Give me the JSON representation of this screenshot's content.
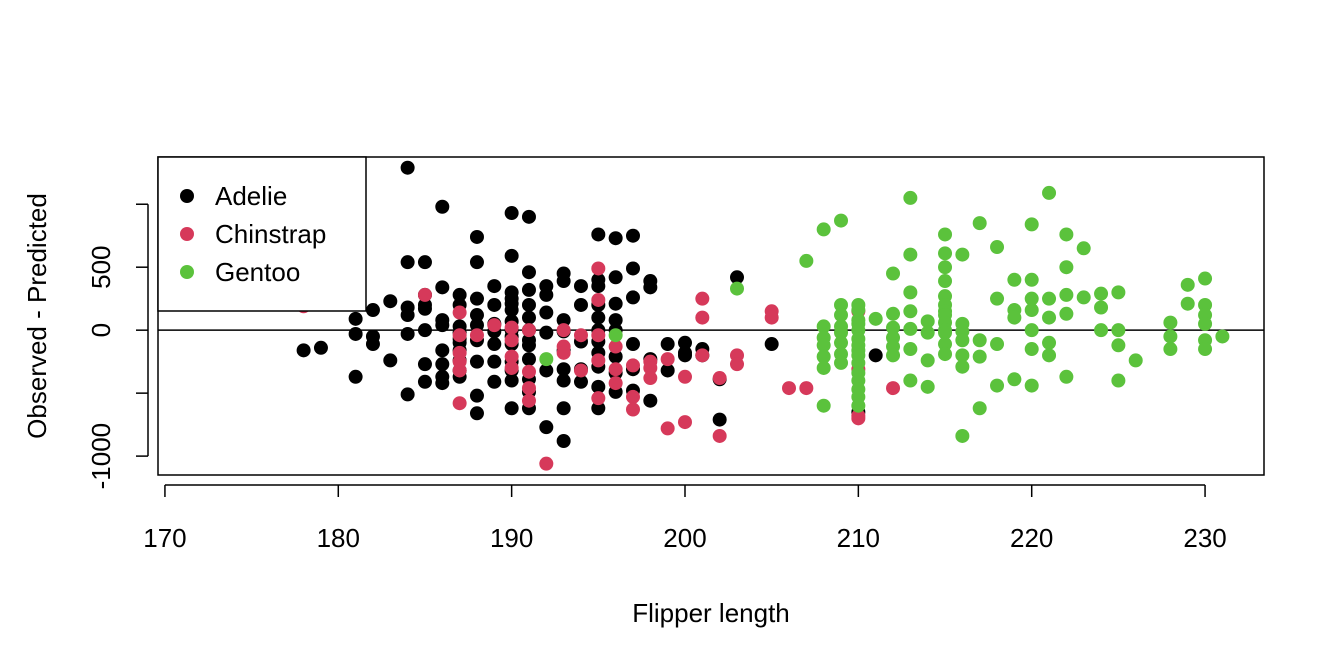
{
  "chart_data": {
    "type": "scatter",
    "title": "",
    "xlabel": "Flipper length",
    "ylabel": "Observed - Predicted",
    "xlim": [
      169.6,
      233.4
    ],
    "ylim": [
      -1150,
      1375
    ],
    "xticks": [
      170,
      180,
      190,
      200,
      210,
      220,
      230
    ],
    "yticks": [
      -1000,
      -500,
      0,
      500,
      1000
    ],
    "ytick_labels": [
      "-1000",
      "",
      "0",
      "500",
      ""
    ],
    "reference_line_y": 0,
    "grid": false,
    "legend_position": "top-left",
    "series": [
      {
        "name": "Adelie",
        "color": "#000000",
        "points": [
          [
            178,
            -160
          ],
          [
            179,
            -140
          ],
          [
            181,
            90
          ],
          [
            181,
            -30
          ],
          [
            181,
            -370
          ],
          [
            182,
            160
          ],
          [
            182,
            -50
          ],
          [
            182,
            -110
          ],
          [
            183,
            230
          ],
          [
            183,
            -240
          ],
          [
            184,
            1290
          ],
          [
            184,
            540
          ],
          [
            184,
            180
          ],
          [
            184,
            120
          ],
          [
            184,
            -30
          ],
          [
            184,
            -510
          ],
          [
            185,
            540
          ],
          [
            185,
            280
          ],
          [
            185,
            200
          ],
          [
            185,
            170
          ],
          [
            185,
            0
          ],
          [
            185,
            -270
          ],
          [
            185,
            -410
          ],
          [
            186,
            980
          ],
          [
            186,
            340
          ],
          [
            186,
            80
          ],
          [
            186,
            40
          ],
          [
            186,
            -160
          ],
          [
            186,
            -270
          ],
          [
            186,
            -370
          ],
          [
            186,
            -420
          ],
          [
            187,
            280
          ],
          [
            187,
            200
          ],
          [
            187,
            30
          ],
          [
            187,
            -20
          ],
          [
            187,
            -70
          ],
          [
            187,
            -100
          ],
          [
            187,
            -160
          ],
          [
            187,
            -240
          ],
          [
            187,
            -320
          ],
          [
            187,
            -370
          ],
          [
            188,
            740
          ],
          [
            188,
            540
          ],
          [
            188,
            250
          ],
          [
            188,
            120
          ],
          [
            188,
            40
          ],
          [
            188,
            -80
          ],
          [
            188,
            -250
          ],
          [
            188,
            -520
          ],
          [
            188,
            -660
          ],
          [
            189,
            350
          ],
          [
            189,
            200
          ],
          [
            189,
            50
          ],
          [
            189,
            -10
          ],
          [
            189,
            -110
          ],
          [
            189,
            -250
          ],
          [
            189,
            -410
          ],
          [
            190,
            930
          ],
          [
            190,
            590
          ],
          [
            190,
            300
          ],
          [
            190,
            250
          ],
          [
            190,
            210
          ],
          [
            190,
            160
          ],
          [
            190,
            70
          ],
          [
            190,
            0
          ],
          [
            190,
            -50
          ],
          [
            190,
            -110
          ],
          [
            190,
            -250
          ],
          [
            190,
            -320
          ],
          [
            190,
            -400
          ],
          [
            190,
            -620
          ],
          [
            191,
            900
          ],
          [
            191,
            460
          ],
          [
            191,
            320
          ],
          [
            191,
            200
          ],
          [
            191,
            100
          ],
          [
            191,
            0
          ],
          [
            191,
            -80
          ],
          [
            191,
            -120
          ],
          [
            191,
            -230
          ],
          [
            191,
            -390
          ],
          [
            191,
            -490
          ],
          [
            191,
            -620
          ],
          [
            192,
            350
          ],
          [
            192,
            280
          ],
          [
            192,
            140
          ],
          [
            192,
            -20
          ],
          [
            192,
            -320
          ],
          [
            192,
            -770
          ],
          [
            193,
            450
          ],
          [
            193,
            390
          ],
          [
            193,
            80
          ],
          [
            193,
            -10
          ],
          [
            193,
            -160
          ],
          [
            193,
            -310
          ],
          [
            193,
            -400
          ],
          [
            193,
            -620
          ],
          [
            193,
            -880
          ],
          [
            194,
            350
          ],
          [
            194,
            200
          ],
          [
            194,
            -90
          ],
          [
            194,
            -310
          ],
          [
            194,
            -410
          ],
          [
            195,
            760
          ],
          [
            195,
            400
          ],
          [
            195,
            350
          ],
          [
            195,
            200
          ],
          [
            195,
            100
          ],
          [
            195,
            0
          ],
          [
            195,
            -90
          ],
          [
            195,
            -180
          ],
          [
            195,
            -290
          ],
          [
            195,
            -450
          ],
          [
            195,
            -620
          ],
          [
            196,
            730
          ],
          [
            196,
            420
          ],
          [
            196,
            210
          ],
          [
            196,
            80
          ],
          [
            196,
            0
          ],
          [
            196,
            -210
          ],
          [
            196,
            -340
          ],
          [
            196,
            -490
          ],
          [
            197,
            750
          ],
          [
            197,
            490
          ],
          [
            197,
            260
          ],
          [
            197,
            -110
          ],
          [
            197,
            -310
          ],
          [
            197,
            -480
          ],
          [
            198,
            390
          ],
          [
            198,
            340
          ],
          [
            198,
            -230
          ],
          [
            198,
            -560
          ],
          [
            199,
            -110
          ],
          [
            199,
            -320
          ],
          [
            200,
            -100
          ],
          [
            200,
            -180
          ],
          [
            200,
            -200
          ],
          [
            201,
            -150
          ],
          [
            201,
            -200
          ],
          [
            202,
            -390
          ],
          [
            202,
            -710
          ],
          [
            203,
            420
          ],
          [
            205,
            -110
          ],
          [
            210,
            -650
          ],
          [
            211,
            -200
          ]
        ]
      },
      {
        "name": "Chinstrap",
        "color": "#d6395a",
        "points": [
          [
            178,
            190
          ],
          [
            185,
            280
          ],
          [
            187,
            140
          ],
          [
            187,
            -40
          ],
          [
            187,
            -180
          ],
          [
            187,
            -250
          ],
          [
            187,
            -320
          ],
          [
            187,
            -580
          ],
          [
            188,
            -40
          ],
          [
            189,
            40
          ],
          [
            190,
            20
          ],
          [
            190,
            -80
          ],
          [
            190,
            -210
          ],
          [
            190,
            -300
          ],
          [
            191,
            0
          ],
          [
            191,
            -330
          ],
          [
            191,
            -460
          ],
          [
            191,
            -560
          ],
          [
            192,
            -1060
          ],
          [
            193,
            0
          ],
          [
            193,
            -130
          ],
          [
            193,
            -180
          ],
          [
            194,
            -40
          ],
          [
            194,
            -320
          ],
          [
            195,
            490
          ],
          [
            195,
            240
          ],
          [
            195,
            -40
          ],
          [
            195,
            -240
          ],
          [
            195,
            -540
          ],
          [
            196,
            -130
          ],
          [
            196,
            -310
          ],
          [
            196,
            -420
          ],
          [
            197,
            -280
          ],
          [
            197,
            -530
          ],
          [
            197,
            -630
          ],
          [
            198,
            -250
          ],
          [
            198,
            -300
          ],
          [
            198,
            -380
          ],
          [
            199,
            -230
          ],
          [
            199,
            -780
          ],
          [
            200,
            -370
          ],
          [
            200,
            -730
          ],
          [
            201,
            250
          ],
          [
            201,
            100
          ],
          [
            201,
            -200
          ],
          [
            202,
            -380
          ],
          [
            202,
            -840
          ],
          [
            203,
            -200
          ],
          [
            203,
            -270
          ],
          [
            205,
            150
          ],
          [
            205,
            100
          ],
          [
            206,
            -460
          ],
          [
            207,
            -460
          ],
          [
            210,
            150
          ],
          [
            210,
            -310
          ],
          [
            210,
            -680
          ],
          [
            210,
            -700
          ],
          [
            212,
            -460
          ]
        ]
      },
      {
        "name": "Gentoo",
        "color": "#5bc23c",
        "points": [
          [
            192,
            -230
          ],
          [
            196,
            -40
          ],
          [
            203,
            330
          ],
          [
            207,
            550
          ],
          [
            208,
            800
          ],
          [
            208,
            30
          ],
          [
            208,
            -60
          ],
          [
            208,
            -120
          ],
          [
            208,
            -210
          ],
          [
            208,
            -300
          ],
          [
            208,
            -600
          ],
          [
            209,
            870
          ],
          [
            209,
            200
          ],
          [
            209,
            120
          ],
          [
            209,
            30
          ],
          [
            209,
            -20
          ],
          [
            209,
            -100
          ],
          [
            209,
            -190
          ],
          [
            209,
            -260
          ],
          [
            210,
            200
          ],
          [
            210,
            160
          ],
          [
            210,
            80
          ],
          [
            210,
            50
          ],
          [
            210,
            0
          ],
          [
            210,
            -70
          ],
          [
            210,
            -120
          ],
          [
            210,
            -160
          ],
          [
            210,
            -200
          ],
          [
            210,
            -260
          ],
          [
            210,
            -340
          ],
          [
            210,
            -400
          ],
          [
            210,
            -470
          ],
          [
            210,
            -530
          ],
          [
            210,
            -600
          ],
          [
            211,
            90
          ],
          [
            212,
            450
          ],
          [
            212,
            130
          ],
          [
            212,
            20
          ],
          [
            212,
            -60
          ],
          [
            212,
            -130
          ],
          [
            212,
            -200
          ],
          [
            213,
            1050
          ],
          [
            213,
            600
          ],
          [
            213,
            300
          ],
          [
            213,
            150
          ],
          [
            213,
            10
          ],
          [
            213,
            -150
          ],
          [
            213,
            -400
          ],
          [
            214,
            70
          ],
          [
            214,
            -20
          ],
          [
            214,
            -240
          ],
          [
            214,
            -450
          ],
          [
            215,
            760
          ],
          [
            215,
            610
          ],
          [
            215,
            500
          ],
          [
            215,
            390
          ],
          [
            215,
            270
          ],
          [
            215,
            200
          ],
          [
            215,
            150
          ],
          [
            215,
            120
          ],
          [
            215,
            60
          ],
          [
            215,
            0
          ],
          [
            215,
            -20
          ],
          [
            215,
            -110
          ],
          [
            215,
            -190
          ],
          [
            216,
            600
          ],
          [
            216,
            50
          ],
          [
            216,
            -10
          ],
          [
            216,
            -80
          ],
          [
            216,
            -200
          ],
          [
            216,
            -290
          ],
          [
            216,
            -840
          ],
          [
            217,
            850
          ],
          [
            217,
            -80
          ],
          [
            217,
            -210
          ],
          [
            217,
            -620
          ],
          [
            218,
            660
          ],
          [
            218,
            250
          ],
          [
            218,
            -110
          ],
          [
            218,
            -440
          ],
          [
            219,
            400
          ],
          [
            219,
            160
          ],
          [
            219,
            100
          ],
          [
            219,
            -390
          ],
          [
            220,
            840
          ],
          [
            220,
            400
          ],
          [
            220,
            250
          ],
          [
            220,
            160
          ],
          [
            220,
            0
          ],
          [
            220,
            -150
          ],
          [
            220,
            -440
          ],
          [
            221,
            1090
          ],
          [
            221,
            250
          ],
          [
            221,
            100
          ],
          [
            221,
            -100
          ],
          [
            221,
            -200
          ],
          [
            222,
            760
          ],
          [
            222,
            500
          ],
          [
            222,
            280
          ],
          [
            222,
            130
          ],
          [
            222,
            -370
          ],
          [
            223,
            650
          ],
          [
            223,
            260
          ],
          [
            224,
            290
          ],
          [
            224,
            180
          ],
          [
            224,
            0
          ],
          [
            225,
            300
          ],
          [
            225,
            0
          ],
          [
            225,
            -120
          ],
          [
            225,
            -400
          ],
          [
            226,
            -240
          ],
          [
            228,
            60
          ],
          [
            228,
            -50
          ],
          [
            228,
            -150
          ],
          [
            229,
            360
          ],
          [
            229,
            210
          ],
          [
            230,
            410
          ],
          [
            230,
            200
          ],
          [
            230,
            120
          ],
          [
            230,
            50
          ],
          [
            230,
            -80
          ],
          [
            230,
            -150
          ],
          [
            231,
            -50
          ]
        ]
      }
    ]
  }
}
